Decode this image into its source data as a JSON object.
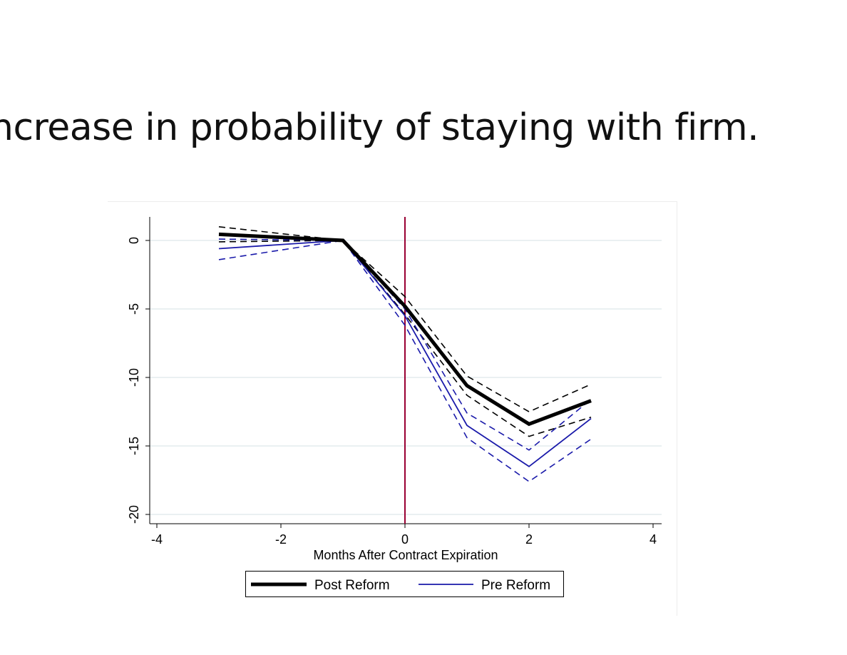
{
  "slide": {
    "title": "ncrease in probability of staying with firm."
  },
  "chart_data": {
    "type": "line",
    "title": "",
    "xlabel": "Months After Contract Expiration",
    "ylabel": "",
    "xlim": [
      -4,
      4
    ],
    "ylim": [
      -20,
      1.5
    ],
    "xticks": [
      -4,
      -2,
      0,
      2,
      4
    ],
    "yticks": [
      0,
      -5,
      -10,
      -15,
      -20
    ],
    "xtick_labels": [
      "-4",
      "-2",
      "0",
      "2",
      "4"
    ],
    "ytick_labels": [
      "0",
      "-5",
      "-10",
      "-15",
      "-20"
    ],
    "grid": "horizontal",
    "vertical_reference_line": {
      "x": 0,
      "color": "#990033"
    },
    "legend": {
      "placement": "bottom",
      "entries": [
        "Post Reform",
        "Pre Reform"
      ]
    },
    "series": [
      {
        "name": "Post Reform",
        "style": "solid-thick",
        "color": "#000000",
        "x": [
          -3,
          -1,
          0,
          1,
          2,
          3
        ],
        "y": [
          0.45,
          0,
          -4.8,
          -10.6,
          -13.4,
          -11.7
        ]
      },
      {
        "style": "dashed",
        "color": "#000000",
        "x": [
          -3,
          -1,
          0,
          1,
          2,
          3
        ],
        "y": [
          1.0,
          0,
          -4.1,
          -9.9,
          -12.5,
          -10.5
        ]
      },
      {
        "style": "dashed",
        "color": "#000000",
        "x": [
          -3,
          -1,
          0,
          1,
          2,
          3
        ],
        "y": [
          -0.1,
          0,
          -5.4,
          -11.3,
          -14.3,
          -12.9
        ]
      },
      {
        "name": "Pre Reform",
        "style": "solid",
        "color": "#1a1aaa",
        "x": [
          -3,
          -1,
          0,
          1,
          2,
          3
        ],
        "y": [
          -0.6,
          0,
          -5.5,
          -13.5,
          -16.5,
          -13.0
        ]
      },
      {
        "style": "dashed",
        "color": "#1a1aaa",
        "x": [
          -3,
          -1,
          0,
          1,
          2,
          3
        ],
        "y": [
          0.1,
          0,
          -5.0,
          -12.6,
          -15.3,
          -11.6
        ]
      },
      {
        "style": "dashed",
        "color": "#1a1aaa",
        "x": [
          -3,
          -1,
          0,
          1,
          2,
          3
        ],
        "y": [
          -1.4,
          0,
          -6.2,
          -14.4,
          -17.6,
          -14.5
        ]
      }
    ]
  }
}
